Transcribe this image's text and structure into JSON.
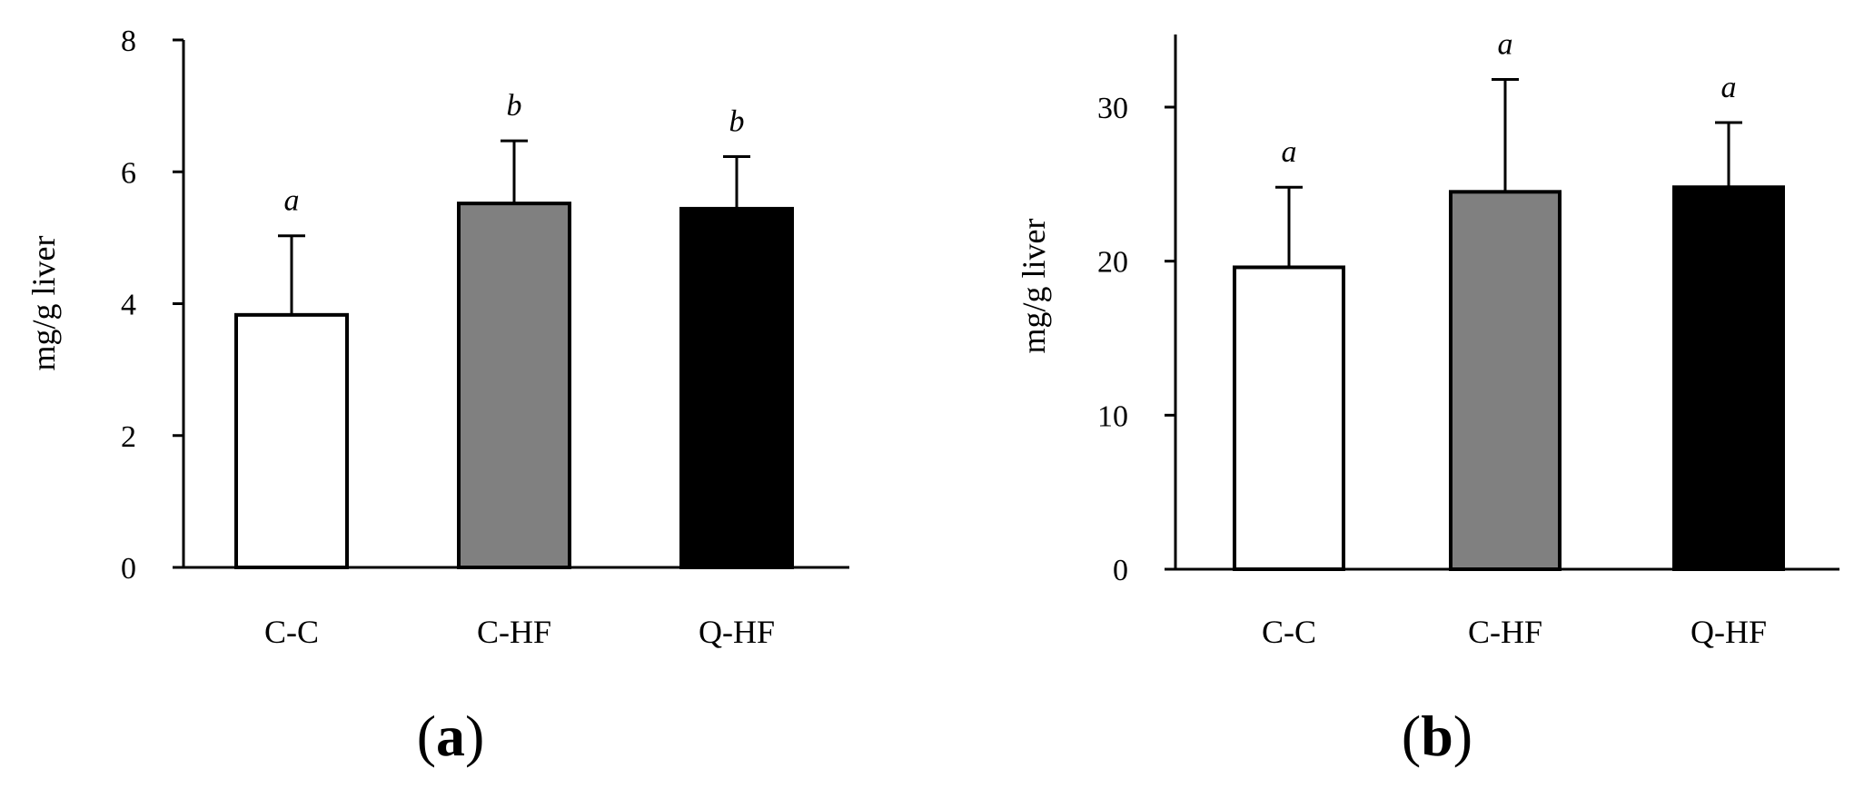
{
  "chart_data": [
    {
      "type": "bar",
      "panel": "a",
      "categories": [
        "C-C",
        "C-HF",
        "Q-HF"
      ],
      "values": [
        3.83,
        5.52,
        5.44
      ],
      "errors": [
        1.2,
        0.95,
        0.79
      ],
      "significance_letters": [
        "a",
        "b",
        "b"
      ],
      "bar_colors": [
        "#ffffff",
        "#808080",
        "#000000"
      ],
      "ylabel": "mg/g liver",
      "xlabel": "",
      "ylim": [
        0,
        8
      ],
      "yticks": [
        "0",
        "2",
        "4",
        "6",
        "8"
      ],
      "grid": false,
      "legend": "none"
    },
    {
      "type": "bar",
      "panel": "b",
      "categories": [
        "C-C",
        "C-HF",
        "Q-HF"
      ],
      "values": [
        19.6,
        24.5,
        24.8
      ],
      "errors": [
        5.2,
        7.3,
        4.2
      ],
      "significance_letters": [
        "a",
        "a",
        "a"
      ],
      "bar_colors": [
        "#ffffff",
        "#808080",
        "#000000"
      ],
      "ylabel": "mg/g liver",
      "xlabel": "",
      "ylim": [
        0,
        35
      ],
      "yticks": [
        "0",
        "10",
        "20",
        "30"
      ],
      "grid": false,
      "legend": "none"
    }
  ],
  "panel_labels": [
    {
      "open": "(",
      "letter": "a",
      "close": ")"
    },
    {
      "open": "(",
      "letter": "b",
      "close": ")"
    }
  ]
}
